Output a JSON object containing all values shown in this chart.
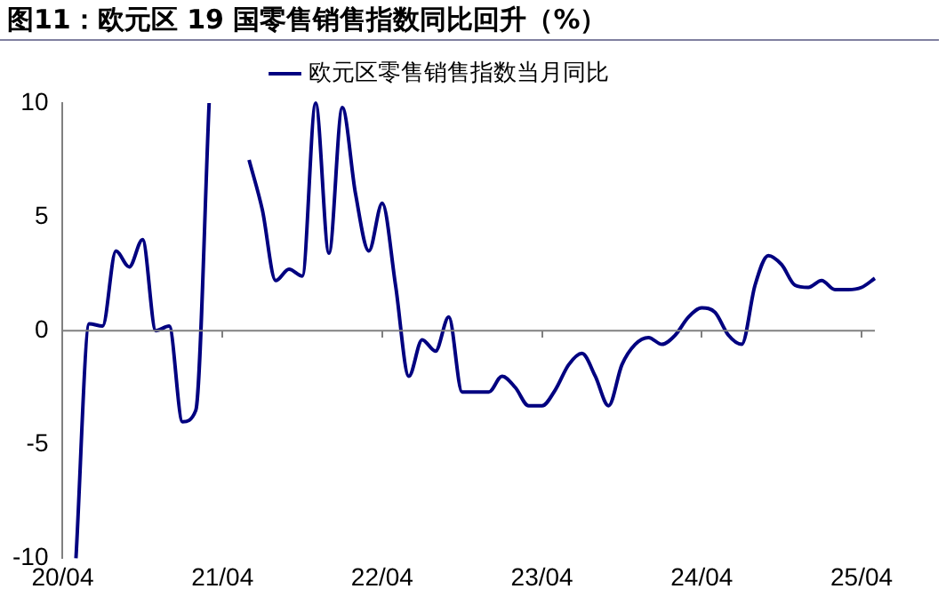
{
  "chart_data": {
    "type": "line",
    "title": "图11：欧元区 19 国零售销售指数同比回升（%）",
    "categories": [
      "20/04",
      null,
      null,
      null,
      null,
      null,
      null,
      null,
      null,
      null,
      null,
      null,
      "21/04",
      null,
      null,
      null,
      null,
      null,
      null,
      null,
      null,
      null,
      null,
      null,
      "22/04",
      null,
      null,
      null,
      null,
      null,
      null,
      null,
      null,
      null,
      null,
      null,
      "23/04",
      null,
      null,
      null,
      null,
      null,
      null,
      null,
      null,
      null,
      null,
      null,
      "24/04",
      null,
      null,
      null,
      null,
      null,
      null,
      null,
      null,
      null,
      null,
      null,
      "25/04",
      null
    ],
    "series": [
      {
        "name": "欧元区零售销售指数当月同比",
        "color": "#000080",
        "values": [
          null,
          -10,
          0.3,
          0.2,
          3.5,
          2.8,
          4.0,
          0.0,
          0.2,
          -4.0,
          -3.5,
          10,
          null,
          null,
          7.5,
          5.3,
          2.2,
          2.7,
          2.4,
          10,
          3.4,
          9.8,
          6.0,
          3.5,
          5.6,
          2.0,
          -2.0,
          -0.4,
          -0.9,
          0.6,
          -2.7,
          -2.7,
          -2.7,
          -2.0,
          -2.5,
          -3.3,
          -3.3,
          -2.6,
          -1.5,
          -1.0,
          -2.0,
          -3.3,
          -1.5,
          -0.6,
          -0.3,
          -0.6,
          -0.2,
          0.6,
          1.0,
          0.8,
          -0.2,
          -0.6,
          2.0,
          3.3,
          2.9,
          2.0,
          1.9,
          2.2,
          1.8,
          1.8,
          1.9,
          2.3
        ]
      }
    ],
    "ylim": [
      -10,
      10
    ],
    "yticks": [
      -10,
      -5,
      0,
      5,
      10
    ],
    "ref_lines": [
      {
        "axis": "y",
        "value": 0,
        "color": "#808080"
      }
    ],
    "grid": false,
    "legend": "top",
    "marker": "none",
    "line_style": "solid"
  }
}
